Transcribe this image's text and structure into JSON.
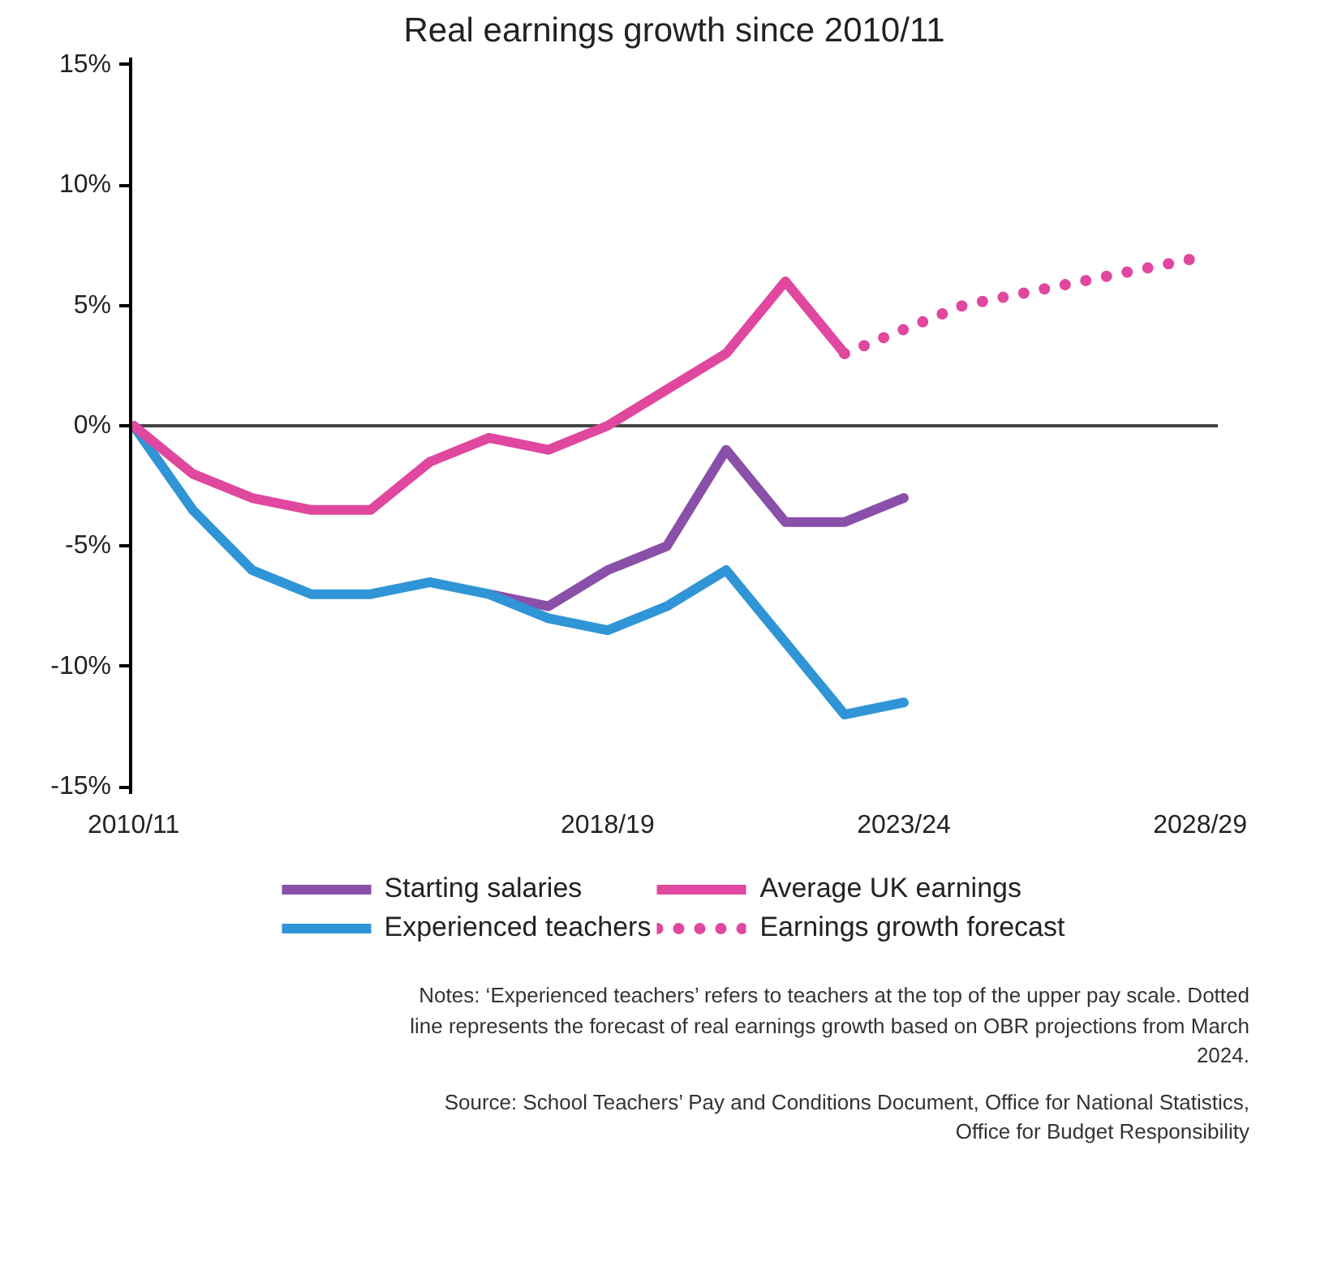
{
  "chart_data": {
    "type": "line",
    "title": "Real earnings growth since 2010/11",
    "categories": [
      "2010/11",
      null,
      null,
      null,
      null,
      null,
      null,
      null,
      "2018/19",
      null,
      null,
      null,
      null,
      "2023/24",
      null,
      null,
      null,
      null,
      "2028/29"
    ],
    "series": [
      {
        "name": "Starting salaries",
        "color": "#8a4fa8",
        "values": [
          null,
          null,
          null,
          null,
          null,
          null,
          -7,
          -7.5,
          -6,
          -5,
          -1,
          -4,
          -4,
          -3,
          null,
          null,
          null,
          null,
          null
        ]
      },
      {
        "name": "Experienced teachers",
        "color": "#2f95d6",
        "values": [
          0,
          -3.5,
          -6,
          -7,
          -7,
          -6.5,
          -7,
          -8,
          -8.5,
          -7.5,
          -6,
          -9,
          -12,
          -11.5,
          null,
          null,
          null,
          null,
          null
        ]
      },
      {
        "name": "Average UK earnings",
        "color": "#e0479e",
        "values": [
          0,
          -2,
          -3,
          -3.5,
          -3.5,
          -1.5,
          -0.5,
          -1,
          0,
          1.5,
          3,
          6,
          3,
          null,
          null,
          null,
          null,
          null,
          null
        ]
      },
      {
        "name": "Earnings growth forecast",
        "color": "#e0479e",
        "line_style": "dotted",
        "values": [
          null,
          null,
          null,
          null,
          null,
          null,
          null,
          null,
          null,
          null,
          null,
          null,
          3,
          4,
          5,
          5.5,
          6,
          6.5,
          7
        ]
      }
    ],
    "ylim": [
      -15.3,
      15.3
    ],
    "yticks": [
      {
        "value": -15,
        "label": "-15%"
      },
      {
        "value": -10,
        "label": "-10%"
      },
      {
        "value": -5,
        "label": "-5%"
      },
      {
        "value": 0,
        "label": "0%"
      },
      {
        "value": 5,
        "label": "5%"
      },
      {
        "value": 10,
        "label": "10%"
      },
      {
        "value": 15,
        "label": "15%"
      }
    ],
    "ref_lines": [
      {
        "axis": "y",
        "value": 0,
        "color": "#444444"
      }
    ],
    "grid": false,
    "legend": "bottom",
    "line_style": "solid",
    "annotations": [
      "Notes: ‘Experienced teachers’ refers to teachers at the top of the upper pay scale. Dotted line represents the forecast of real earnings growth based on OBR projections from March 2024.",
      "Source: School Teachers’ Pay and Conditions Document, Office for National Statistics, Office for Budget Responsibility"
    ]
  }
}
